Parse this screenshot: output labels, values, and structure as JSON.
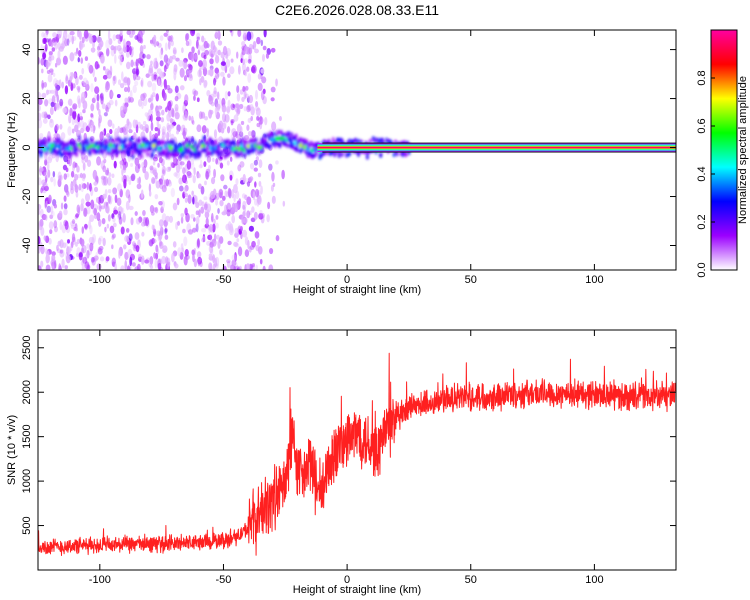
{
  "title": "C2E6.2026.028.08.33.E11",
  "chart_data": [
    {
      "type": "heatmap",
      "xlabel": "Height of straight line (km)",
      "ylabel": "Frequency (Hz)",
      "xlim": [
        -125,
        133
      ],
      "ylim": [
        -50,
        48
      ],
      "xticks": [
        -100,
        -50,
        0,
        50,
        100
      ],
      "yticks": [
        -40,
        -20,
        0,
        20,
        40
      ],
      "colorbar": {
        "label": "Normalized spectral amplitude",
        "range": [
          0,
          1
        ],
        "ticks": [
          "0.0",
          "0.2",
          "0.4",
          "0.6",
          "0.8"
        ],
        "colors": [
          "#ffffff",
          "#9b00ff",
          "#0000ff",
          "#00ffff",
          "#00ff00",
          "#ffff00",
          "#ff0000",
          "#ff00a0"
        ]
      },
      "features": {
        "carrier_frequency_hz": 0,
        "noise_region_x": [
          -125,
          -40
        ],
        "transition_x": [
          -40,
          25
        ],
        "clean_region_x": [
          25,
          133
        ]
      }
    },
    {
      "type": "line",
      "xlabel": "Height of straight line (km)",
      "ylabel": "SNR (10 * v/v)",
      "xlim": [
        -125,
        133
      ],
      "ylim": [
        0,
        2700
      ],
      "xticks": [
        -100,
        -50,
        0,
        50,
        100
      ],
      "yticks": [
        500,
        1000,
        1500,
        2000,
        2500
      ],
      "color": "#ff2020",
      "series": [
        {
          "x": [
            -125,
            -110,
            -100,
            -90,
            -80,
            -70,
            -60,
            -50,
            -45,
            -40,
            -35,
            -30,
            -25,
            -22,
            -20,
            -18,
            -15,
            -12,
            -10,
            -8,
            -5,
            0,
            5,
            10,
            12,
            15,
            20,
            25,
            30,
            40,
            50,
            60,
            70,
            80,
            90,
            100,
            110,
            120,
            133
          ],
          "values": [
            250,
            270,
            280,
            285,
            290,
            300,
            310,
            330,
            370,
            470,
            640,
            800,
            950,
            1600,
            1100,
            1000,
            1250,
            900,
            850,
            1100,
            1350,
            1450,
            1550,
            1400,
            1300,
            1550,
            1700,
            1800,
            1860,
            1920,
            1950,
            1960,
            1980,
            1990,
            1985,
            1975,
            1960,
            1950,
            1950
          ]
        }
      ]
    }
  ]
}
